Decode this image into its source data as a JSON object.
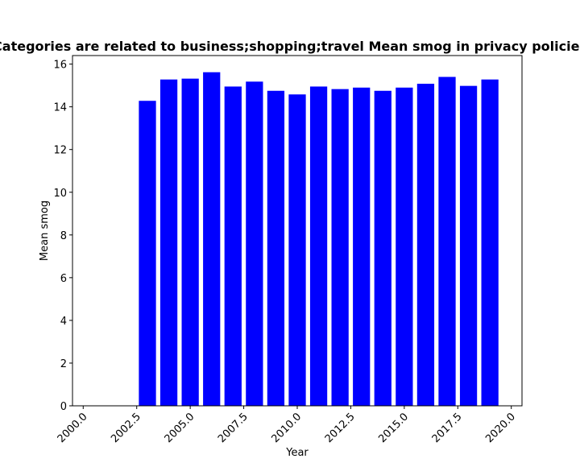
{
  "chart_data": {
    "type": "bar",
    "title": "Categories are related to business;shopping;travel Mean smog in privacy policies",
    "xlabel": "Year",
    "ylabel": "Mean smog",
    "bar_color": "#0000ff",
    "xlim": [
      1999.5,
      2020.5
    ],
    "ylim": [
      0,
      16.4
    ],
    "x_ticks": [
      2000.0,
      2002.5,
      2005.0,
      2007.5,
      2010.0,
      2012.5,
      2015.0,
      2017.5,
      2020.0
    ],
    "x_tick_labels": [
      "2000.0",
      "2002.5",
      "2005.0",
      "2007.5",
      "2010.0",
      "2012.5",
      "2015.0",
      "2017.5",
      "2020.0"
    ],
    "y_ticks": [
      0,
      2,
      4,
      6,
      8,
      10,
      12,
      14,
      16
    ],
    "y_tick_labels": [
      "0",
      "2",
      "4",
      "6",
      "8",
      "10",
      "12",
      "14",
      "16"
    ],
    "bar_width": 0.8,
    "grid": false,
    "legend": "none",
    "x": [
      2003,
      2004,
      2005,
      2006,
      2007,
      2008,
      2009,
      2010,
      2011,
      2012,
      2013,
      2014,
      2015,
      2016,
      2017,
      2018,
      2019
    ],
    "values": [
      14.28,
      15.28,
      15.32,
      15.62,
      14.95,
      15.18,
      14.75,
      14.58,
      14.95,
      14.83,
      14.9,
      14.75,
      14.9,
      15.08,
      15.4,
      14.98,
      15.28
    ]
  }
}
